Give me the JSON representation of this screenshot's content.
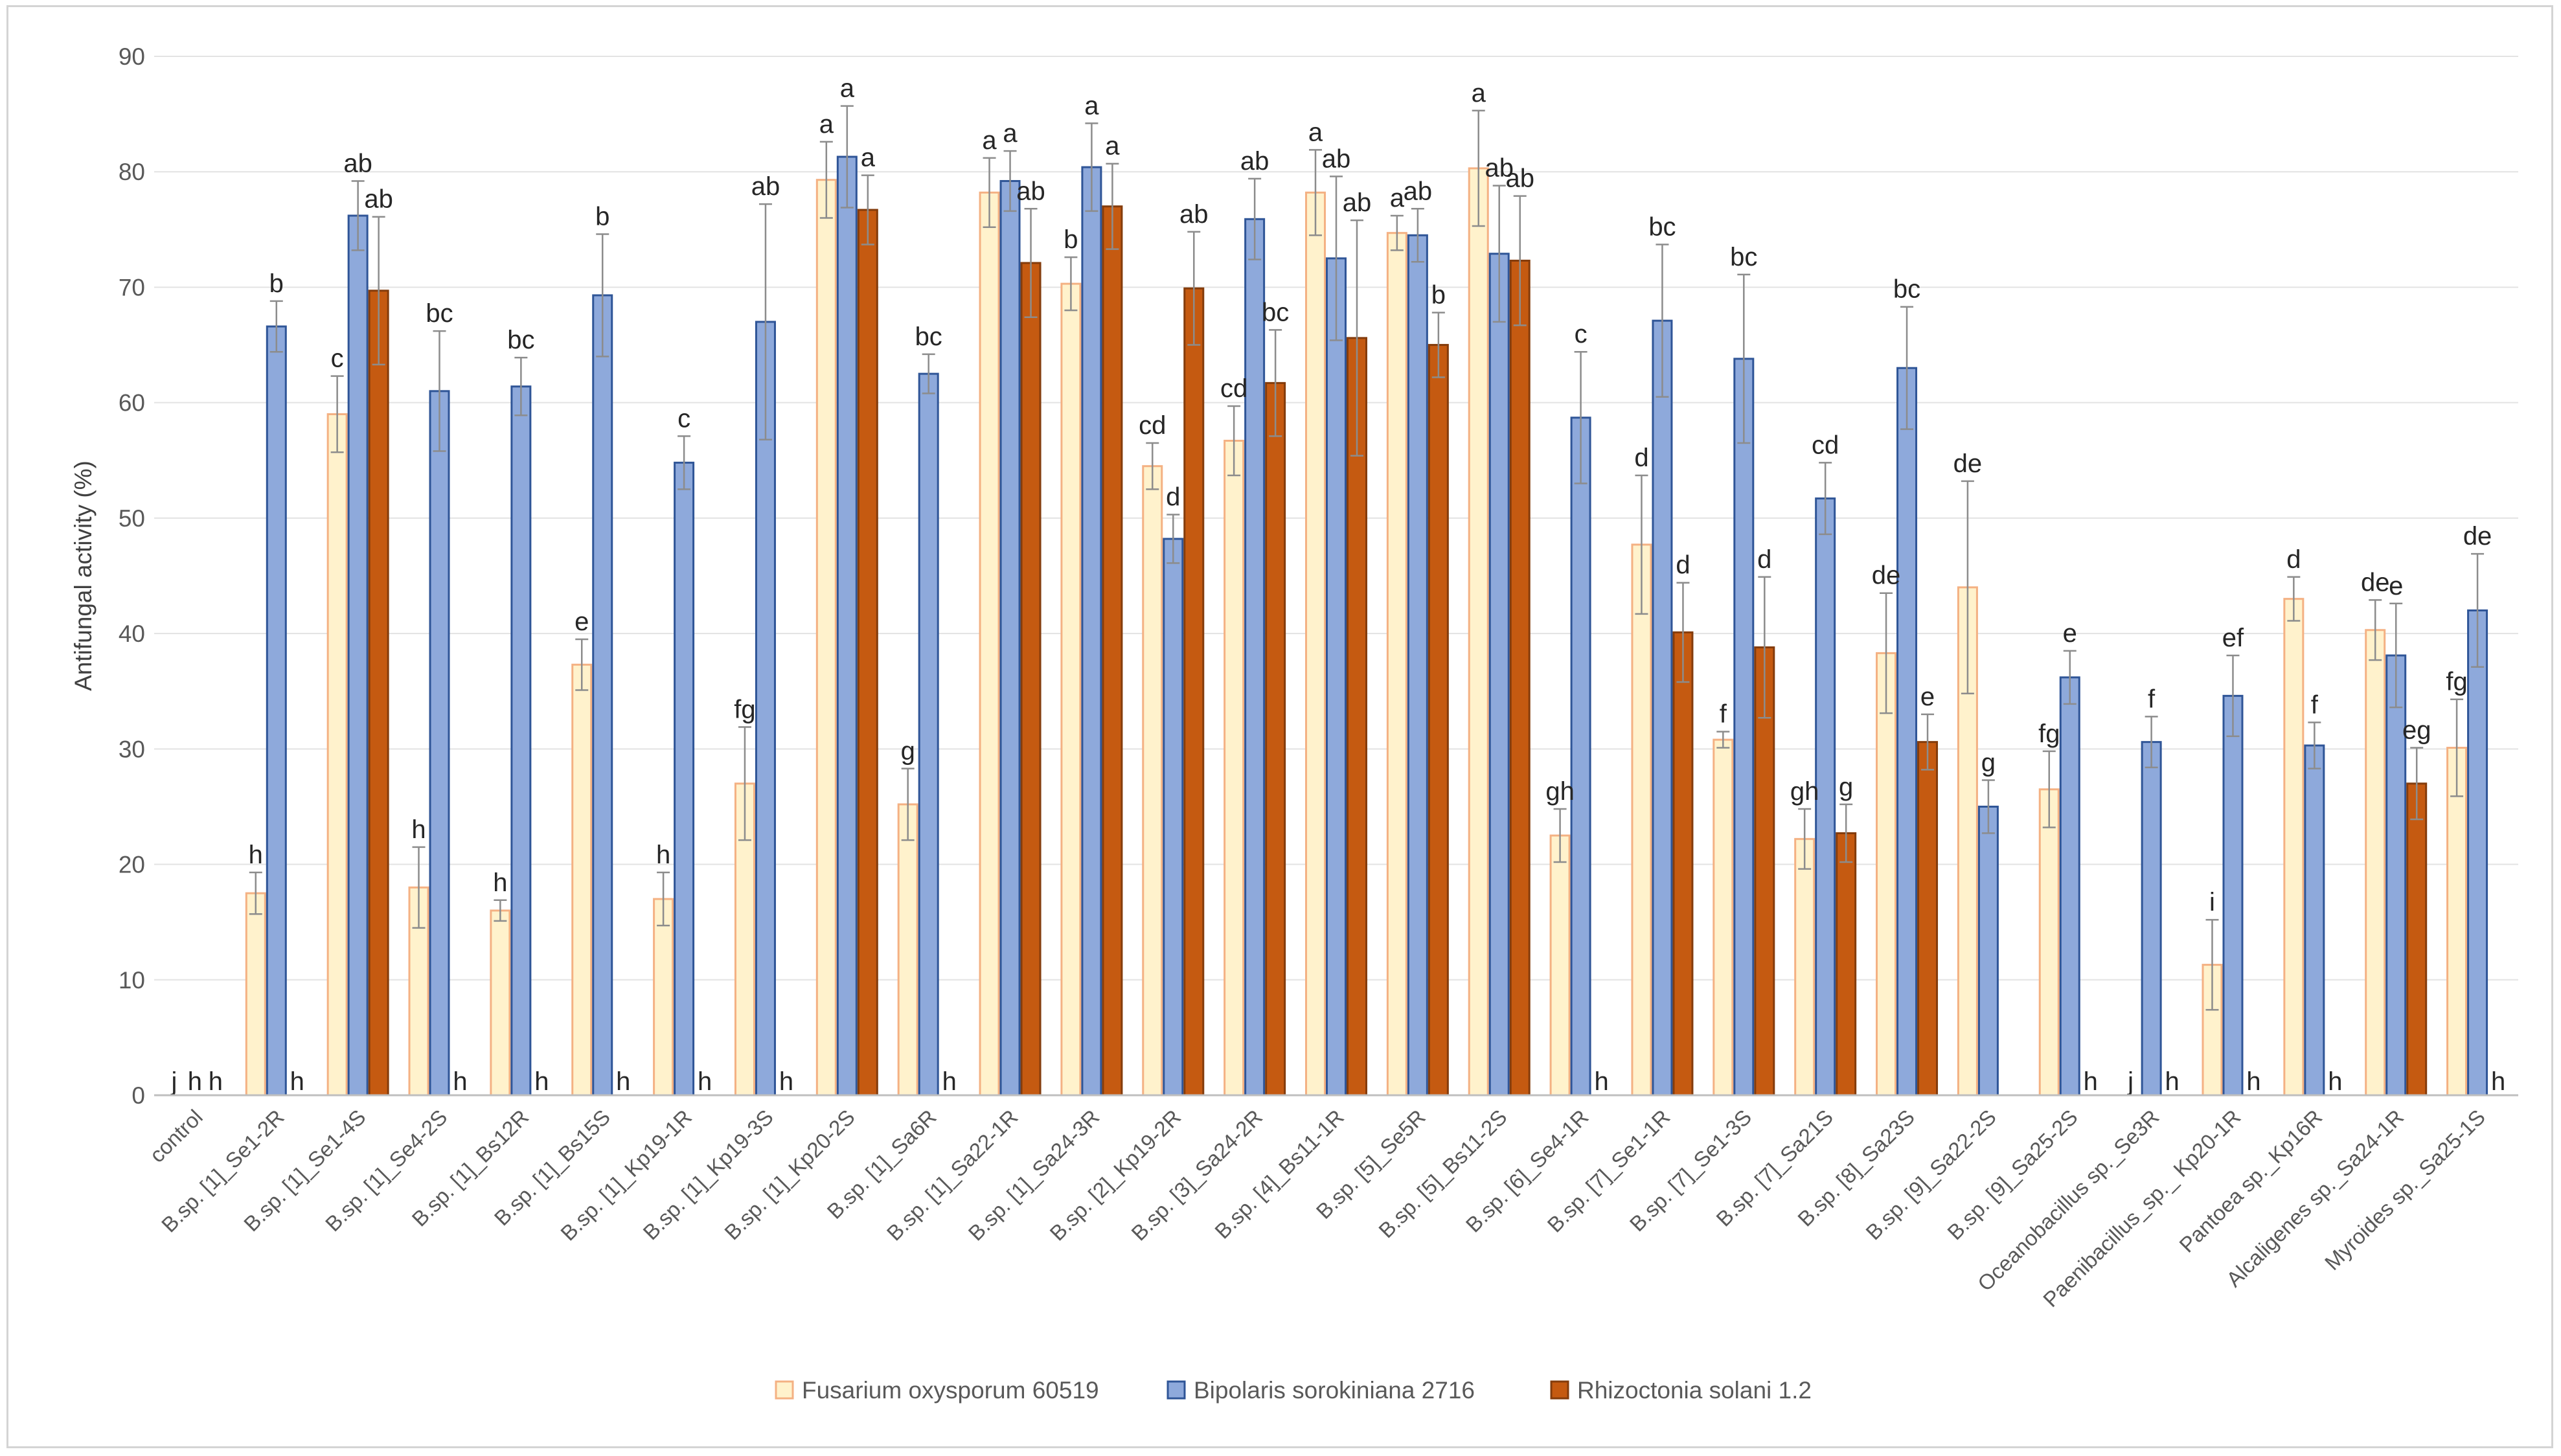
{
  "chart_data": {
    "type": "bar",
    "title": "",
    "xlabel": "",
    "ylabel": "Antifungal activity (%)",
    "ylim": [
      0,
      90
    ],
    "yticks": [
      0,
      10,
      20,
      30,
      40,
      50,
      60,
      70,
      80,
      90
    ],
    "grid": true,
    "legend_position": "bottom",
    "categories": [
      "control",
      "B.sp. [1]_Se1-2R",
      "B.sp. [1]_Se1-4S",
      "B.sp. [1]_Se4-2S",
      "B.sp. [1]_Bs12R",
      "B.sp. [1]_Bs15S",
      "B.sp. [1]_Kp19-1R",
      "B.sp. [1]_Kp19-3S",
      "B.sp. [1]_Kp20-2S",
      "B.sp. [1]_Sa6R",
      "B.sp. [1]_Sa22-1R",
      "B.sp. [1]_Sa24-3R",
      "B.sp. [2]_Kp19-2R",
      "B.sp. [3]_Sa24-2R",
      "B.sp. [4]_Bs11-1R",
      "B.sp. [5]_Se5R",
      "B.sp. [5]_Bs11-2S",
      "B.sp. [6]_Se4-1R",
      "B.sp. [7]_Se1-1R",
      "B.sp. [7]_Se1-3S",
      "B.sp. [7]_Sa21S",
      "B.sp. [8]_Sa23S",
      "B.sp. [9]_Sa22-2S",
      "B.sp. [9]_Sa25-2S",
      "Oceanobacillus sp._Se3R",
      "Paenibacillus_sp._ Kp20-1R",
      "Pantoea sp._Kp16R",
      "Alcaligenes sp._Sa24-1R",
      "Myroides sp._Sa25-1S"
    ],
    "series": [
      {
        "name": "Fusarium oxysporum 60519",
        "color": "#FFF2CC",
        "edge": "#F4B183",
        "values": [
          0,
          17.5,
          59,
          18,
          16,
          37.3,
          17,
          27,
          79.3,
          25.2,
          78.2,
          70.3,
          54.5,
          56.7,
          78.2,
          74.7,
          80.3,
          22.5,
          47.7,
          30.8,
          22.2,
          38.3,
          44,
          26.5,
          0,
          11.3,
          43,
          40.3,
          30.1
        ],
        "errors": [
          0,
          1.8,
          3.3,
          3.5,
          0.9,
          2.2,
          2.3,
          4.9,
          3.3,
          3.1,
          3,
          2.3,
          2,
          3,
          3.7,
          1.5,
          5,
          2.3,
          6,
          0.7,
          2.6,
          5.2,
          9.2,
          3.3,
          0,
          3.9,
          1.9,
          2.6,
          4.2
        ],
        "labels": [
          "j",
          "h",
          "c",
          "h",
          "h",
          "e",
          "h",
          "fg",
          "a",
          "g",
          "a",
          "b",
          "cd",
          "cd",
          "a",
          "a",
          "a",
          "gh",
          "d",
          "f",
          "gh",
          "de",
          "de",
          "fg",
          "j",
          "i",
          "d",
          "de",
          "fg"
        ]
      },
      {
        "name": "Bipolaris sorokiniana 2716",
        "color": "#8EA9DB",
        "edge": "#2F5597",
        "values": [
          0,
          66.6,
          76.2,
          61,
          61.4,
          69.3,
          54.8,
          67,
          81.3,
          62.5,
          79.2,
          80.4,
          48.2,
          75.9,
          72.5,
          74.5,
          72.9,
          58.7,
          67.1,
          63.8,
          51.7,
          63,
          25,
          36.2,
          30.6,
          34.6,
          30.3,
          38.1,
          42
        ],
        "errors": [
          0,
          2.2,
          3,
          5.2,
          2.5,
          5.3,
          2.3,
          10.2,
          4.4,
          1.7,
          2.6,
          3.8,
          2.1,
          3.5,
          7.1,
          2.3,
          5.9,
          5.7,
          6.6,
          7.3,
          3.1,
          5.3,
          2.3,
          2.3,
          2.2,
          3.5,
          2,
          4.5,
          4.9
        ],
        "labels": [
          "h",
          "b",
          "ab",
          "bc",
          "bc",
          "b",
          "c",
          "ab",
          "a",
          "bc",
          "a",
          "a",
          "d",
          "ab",
          "ab",
          "ab",
          "ab",
          "c",
          "bc",
          "bc",
          "cd",
          "bc",
          "g",
          "e",
          "f",
          "ef",
          "f",
          "e",
          "de"
        ]
      },
      {
        "name": "Rhizoctonia solani 1.2",
        "color": "#C55A11",
        "edge": "#843C0C",
        "values": [
          0,
          0,
          69.7,
          0,
          0,
          0,
          0,
          0,
          76.7,
          0,
          72.1,
          77,
          69.9,
          61.7,
          65.6,
          65,
          72.3,
          0,
          40.1,
          38.8,
          22.7,
          30.6,
          0,
          0,
          0,
          0,
          0,
          27,
          0
        ],
        "errors": [
          0,
          0,
          6.4,
          0,
          0,
          0,
          0,
          0,
          3,
          0,
          4.7,
          3.7,
          4.9,
          4.6,
          10.2,
          2.8,
          5.6,
          0,
          4.3,
          6.1,
          2.5,
          2.4,
          0,
          0,
          0,
          0,
          0,
          3.1,
          0
        ],
        "labels": [
          "h",
          "h",
          "ab",
          "h",
          "h",
          "h",
          "h",
          "h",
          "a",
          "h",
          "ab",
          "a",
          "ab",
          "bc",
          "ab",
          "b",
          "ab",
          "h",
          "d",
          "d",
          "g",
          "e",
          "",
          "h",
          "h",
          "h",
          "h",
          "eg",
          "h"
        ]
      }
    ]
  }
}
